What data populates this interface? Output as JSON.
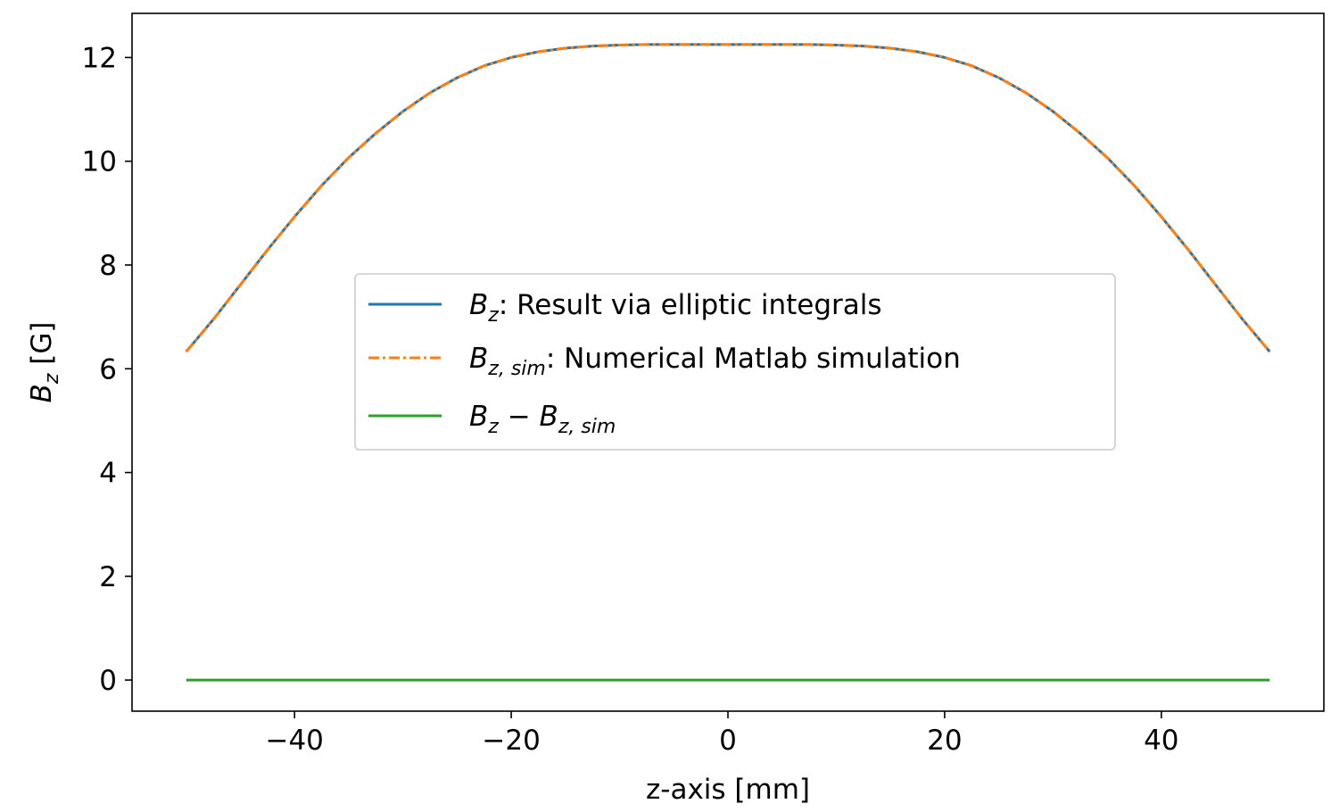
{
  "chart_data": {
    "type": "line",
    "title": "",
    "xlabel": "z-axis [mm]",
    "ylabel": {
      "symbol": "B",
      "subscript": "z",
      "unit": " [G]"
    },
    "xlim": [
      -55,
      55
    ],
    "ylim": [
      -0.6,
      12.85
    ],
    "xticks": [
      -40,
      -20,
      0,
      20,
      40
    ],
    "yticks": [
      0,
      2,
      4,
      6,
      8,
      10,
      12
    ],
    "xtick_labels": [
      "−40",
      "−20",
      "0",
      "20",
      "40"
    ],
    "ytick_labels": [
      "0",
      "2",
      "4",
      "6",
      "8",
      "10",
      "12"
    ],
    "grid": false,
    "legend_position": "center",
    "x": [
      -50,
      -47.5,
      -45,
      -42.5,
      -40,
      -37.5,
      -35,
      -32.5,
      -30,
      -27.5,
      -25,
      -22.5,
      -20,
      -17.5,
      -15,
      -12.5,
      -10,
      -7.5,
      -5,
      -2.5,
      0,
      2.5,
      5,
      7.5,
      10,
      12.5,
      15,
      17.5,
      20,
      22.5,
      25,
      27.5,
      30,
      32.5,
      35,
      37.5,
      40,
      42.5,
      45,
      47.5,
      50
    ],
    "series": [
      {
        "name": "Result via elliptic integrals",
        "legend_symbol": "B",
        "legend_sub": "z",
        "legend_suffix": ": Result via elliptic integrals",
        "color": "#1f77b4",
        "style": "solid",
        "values": [
          6.33,
          6.95,
          7.62,
          8.29,
          8.93,
          9.53,
          10.07,
          10.54,
          10.96,
          11.32,
          11.61,
          11.84,
          12.0,
          12.11,
          12.18,
          12.22,
          12.24,
          12.25,
          12.25,
          12.25,
          12.25,
          12.25,
          12.25,
          12.25,
          12.24,
          12.22,
          12.18,
          12.11,
          12.0,
          11.84,
          11.61,
          11.32,
          10.96,
          10.54,
          10.07,
          9.53,
          8.93,
          8.29,
          7.62,
          6.95,
          6.33
        ]
      },
      {
        "name": "Numerical Matlab simulation",
        "legend_symbol": "B",
        "legend_sub": "z, sim",
        "legend_suffix": ": Numerical Matlab simulation",
        "color": "#ff7f0e",
        "style": "dashdot",
        "values": [
          6.33,
          6.95,
          7.62,
          8.29,
          8.93,
          9.53,
          10.07,
          10.54,
          10.96,
          11.32,
          11.61,
          11.84,
          12.0,
          12.11,
          12.18,
          12.22,
          12.24,
          12.25,
          12.25,
          12.25,
          12.25,
          12.25,
          12.25,
          12.25,
          12.24,
          12.22,
          12.18,
          12.11,
          12.0,
          11.84,
          11.61,
          11.32,
          10.96,
          10.54,
          10.07,
          9.53,
          8.93,
          8.29,
          7.62,
          6.95,
          6.33
        ]
      },
      {
        "name": "B_z − B_z,sim",
        "legend_symbol": "B",
        "legend_sub": "z",
        "legend_mid": " − ",
        "legend_symbol2": "B",
        "legend_sub2": "z, sim",
        "color": "#2ca02c",
        "style": "solid",
        "values": [
          0,
          0,
          0,
          0,
          0,
          0,
          0,
          0,
          0,
          0,
          0,
          0,
          0,
          0,
          0,
          0,
          0,
          0,
          0,
          0,
          0,
          0,
          0,
          0,
          0,
          0,
          0,
          0,
          0,
          0,
          0,
          0,
          0,
          0,
          0,
          0,
          0,
          0,
          0,
          0,
          0
        ]
      }
    ]
  }
}
